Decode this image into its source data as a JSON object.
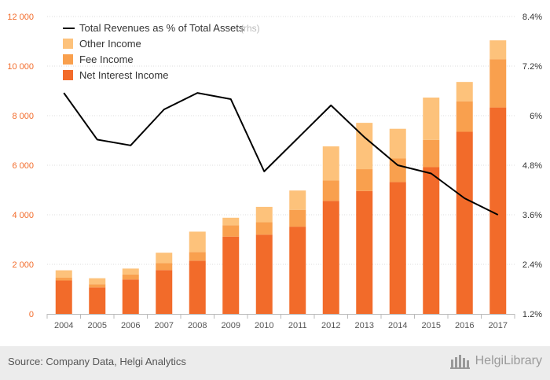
{
  "chart_data": {
    "type": "bar",
    "stacked": true,
    "categories": [
      "2004",
      "2005",
      "2006",
      "2007",
      "2008",
      "2009",
      "2010",
      "2011",
      "2012",
      "2013",
      "2014",
      "2015",
      "2016",
      "2017"
    ],
    "series": [
      {
        "name": "Net Interest Income",
        "color": "#f26b2a",
        "values": [
          1350,
          1070,
          1390,
          1770,
          2150,
          3120,
          3200,
          3520,
          4560,
          4960,
          5320,
          5920,
          7350,
          8330
        ]
      },
      {
        "name": "Fee Income",
        "color": "#f9a04e",
        "values": [
          110,
          130,
          200,
          280,
          350,
          460,
          500,
          680,
          820,
          880,
          950,
          1100,
          1230,
          1950
        ]
      },
      {
        "name": "Other Income",
        "color": "#fdc27b",
        "values": [
          300,
          240,
          240,
          420,
          820,
          300,
          620,
          780,
          1380,
          1870,
          1200,
          1710,
          780,
          760
        ]
      }
    ],
    "line_series": {
      "name": "Total Revenues as % of Total Assets",
      "axis_note": "(rhs)",
      "color": "#000000",
      "values": [
        6.55,
        5.42,
        5.28,
        6.15,
        6.55,
        6.4,
        4.65,
        5.45,
        6.25,
        5.48,
        4.8,
        4.6,
        4.0,
        3.6
      ]
    },
    "y_left": {
      "min": 0,
      "max": 12000,
      "ticks": [
        "0",
        "2 000",
        "4 000",
        "6 000",
        "8 000",
        "10 000",
        "12 000"
      ]
    },
    "y_right": {
      "min": 1.2,
      "max": 8.4,
      "ticks": [
        "1.2%",
        "2.4%",
        "3.6%",
        "4.8%",
        "6%",
        "7.2%",
        "8.4%"
      ]
    },
    "grid": true,
    "legend_position": "top-left"
  },
  "footer": {
    "source": "Source: Company Data, Helgi Analytics",
    "brand": "HelgiLibrary"
  }
}
